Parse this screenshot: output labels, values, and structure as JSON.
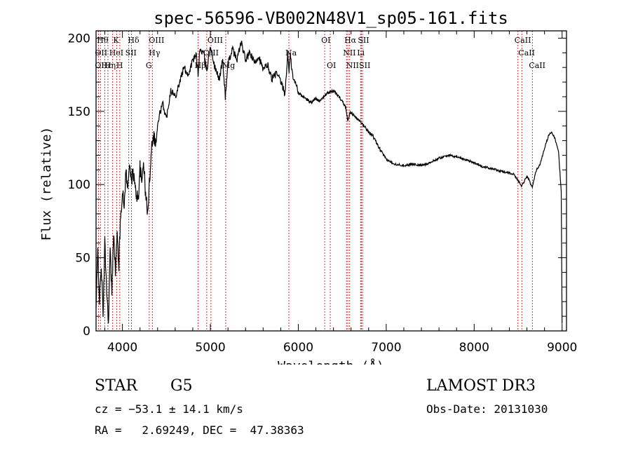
{
  "chart_data": {
    "type": "line",
    "title": "spec-56596-VB002N48V1_sp05-161.fits",
    "xlabel": "Wavelength (Å)",
    "ylabel": "Flux (relative)",
    "xlim": [
      3700,
      9050
    ],
    "ylim": [
      0,
      205
    ],
    "x_ticks": [
      4000,
      5000,
      6000,
      7000,
      8000,
      9000
    ],
    "y_ticks": [
      0,
      50,
      100,
      150,
      200
    ],
    "grid": false,
    "spectrum": [
      [
        3700,
        15
      ],
      [
        3720,
        55
      ],
      [
        3740,
        20
      ],
      [
        3760,
        45
      ],
      [
        3780,
        10
      ],
      [
        3800,
        60
      ],
      [
        3820,
        30
      ],
      [
        3840,
        5
      ],
      [
        3860,
        55
      ],
      [
        3880,
        25
      ],
      [
        3900,
        70
      ],
      [
        3920,
        40
      ],
      [
        3940,
        65
      ],
      [
        3960,
        45
      ],
      [
        3980,
        80
      ],
      [
        4000,
        95
      ],
      [
        4020,
        85
      ],
      [
        4040,
        110
      ],
      [
        4060,
        95
      ],
      [
        4080,
        118
      ],
      [
        4100,
        100
      ],
      [
        4120,
        110
      ],
      [
        4150,
        95
      ],
      [
        4180,
        90
      ],
      [
        4200,
        112
      ],
      [
        4220,
        100
      ],
      [
        4240,
        118
      ],
      [
        4260,
        95
      ],
      [
        4290,
        80
      ],
      [
        4310,
        105
      ],
      [
        4330,
        125
      ],
      [
        4350,
        135
      ],
      [
        4380,
        128
      ],
      [
        4400,
        140
      ],
      [
        4430,
        150
      ],
      [
        4460,
        155
      ],
      [
        4500,
        145
      ],
      [
        4550,
        165
      ],
      [
        4600,
        160
      ],
      [
        4650,
        170
      ],
      [
        4700,
        180
      ],
      [
        4750,
        175
      ],
      [
        4800,
        185
      ],
      [
        4840,
        188
      ],
      [
        4860,
        176
      ],
      [
        4880,
        192
      ],
      [
        4920,
        190
      ],
      [
        4960,
        178
      ],
      [
        5000,
        195
      ],
      [
        5050,
        180
      ],
      [
        5100,
        172
      ],
      [
        5140,
        185
      ],
      [
        5170,
        160
      ],
      [
        5200,
        182
      ],
      [
        5250,
        193
      ],
      [
        5300,
        185
      ],
      [
        5350,
        197
      ],
      [
        5400,
        185
      ],
      [
        5450,
        190
      ],
      [
        5500,
        183
      ],
      [
        5550,
        188
      ],
      [
        5600,
        178
      ],
      [
        5650,
        182
      ],
      [
        5700,
        172
      ],
      [
        5750,
        176
      ],
      [
        5800,
        170
      ],
      [
        5850,
        162
      ],
      [
        5880,
        190
      ],
      [
        5895,
        178
      ],
      [
        5910,
        188
      ],
      [
        5940,
        172
      ],
      [
        5980,
        168
      ],
      [
        6000,
        163
      ],
      [
        6050,
        160
      ],
      [
        6100,
        158
      ],
      [
        6150,
        156
      ],
      [
        6200,
        159
      ],
      [
        6250,
        157
      ],
      [
        6300,
        161
      ],
      [
        6350,
        163
      ],
      [
        6400,
        164
      ],
      [
        6450,
        161
      ],
      [
        6500,
        157
      ],
      [
        6540,
        153
      ],
      [
        6563,
        143
      ],
      [
        6590,
        150
      ],
      [
        6650,
        146
      ],
      [
        6700,
        143
      ],
      [
        6750,
        140
      ],
      [
        6800,
        136
      ],
      [
        6850,
        133
      ],
      [
        6900,
        127
      ],
      [
        6950,
        122
      ],
      [
        7000,
        117
      ],
      [
        7100,
        114
      ],
      [
        7200,
        113
      ],
      [
        7300,
        114
      ],
      [
        7400,
        113
      ],
      [
        7500,
        115
      ],
      [
        7600,
        118
      ],
      [
        7700,
        120
      ],
      [
        7800,
        119
      ],
      [
        7900,
        117
      ],
      [
        8000,
        115
      ],
      [
        8100,
        112
      ],
      [
        8200,
        111
      ],
      [
        8300,
        109
      ],
      [
        8400,
        108
      ],
      [
        8450,
        107
      ],
      [
        8498,
        103
      ],
      [
        8542,
        99
      ],
      [
        8600,
        106
      ],
      [
        8662,
        98
      ],
      [
        8700,
        109
      ],
      [
        8750,
        114
      ],
      [
        8800,
        125
      ],
      [
        8850,
        134
      ],
      [
        8880,
        136
      ],
      [
        8920,
        131
      ],
      [
        8960,
        122
      ],
      [
        8990,
        95
      ],
      [
        9000,
        5
      ]
    ],
    "lines": [
      {
        "wl": 3750,
        "label": "Hθ",
        "row": 0
      },
      {
        "wl": 3727,
        "label": "OII",
        "row": 1
      },
      {
        "wl": 3727,
        "label": "OII",
        "row": 2
      },
      {
        "wl": 3798,
        "label": "Hε",
        "row": 2
      },
      {
        "wl": 3889,
        "label": "HeI",
        "row": 1
      },
      {
        "wl": 3835,
        "label": "Hη",
        "row": 2
      },
      {
        "wl": 3934,
        "label": "K",
        "row": 0
      },
      {
        "wl": 3970,
        "label": "H",
        "row": 2
      },
      {
        "wl": 4102,
        "label": "Hδ",
        "row": 0
      },
      {
        "wl": 4072,
        "label": "SII",
        "row": 1
      },
      {
        "wl": 4340,
        "label": "OIII",
        "row": 0
      },
      {
        "wl": 4340,
        "label": "Hγ",
        "row": 1
      },
      {
        "wl": 4305,
        "label": "G",
        "row": 2
      },
      {
        "wl": 4861,
        "label": "Hβ",
        "row": 2
      },
      {
        "wl": 5007,
        "label": "OIII",
        "row": 0
      },
      {
        "wl": 4959,
        "label": "OIII",
        "row": 1
      },
      {
        "wl": 5175,
        "label": "Mg",
        "row": 2
      },
      {
        "wl": 5893,
        "label": "Na",
        "row": 1
      },
      {
        "wl": 6300,
        "label": "OI",
        "row": 0
      },
      {
        "wl": 6363,
        "label": "OI",
        "row": 2
      },
      {
        "wl": 6563,
        "label": "Hα",
        "row": 0
      },
      {
        "wl": 6548,
        "label": "NII",
        "row": 1
      },
      {
        "wl": 6584,
        "label": "NII",
        "row": 2
      },
      {
        "wl": 6717,
        "label": "SII",
        "row": 0
      },
      {
        "wl": 6708,
        "label": "Li",
        "row": 1
      },
      {
        "wl": 6731,
        "label": "SII",
        "row": 2
      },
      {
        "wl": 8498,
        "label": "CaII",
        "row": 0
      },
      {
        "wl": 8542,
        "label": "CaII",
        "row": 1
      },
      {
        "wl": 8662,
        "label": "CaII",
        "row": 2
      }
    ]
  },
  "info": {
    "class_label": "STAR",
    "subclass": "G5",
    "survey": "LAMOST DR3",
    "cz": "cz = −53.1 ± 14.1 km/s",
    "obs_date": "Obs-Date: 20131030",
    "radec": "RA =   2.69249, DEC =  47.38363"
  }
}
